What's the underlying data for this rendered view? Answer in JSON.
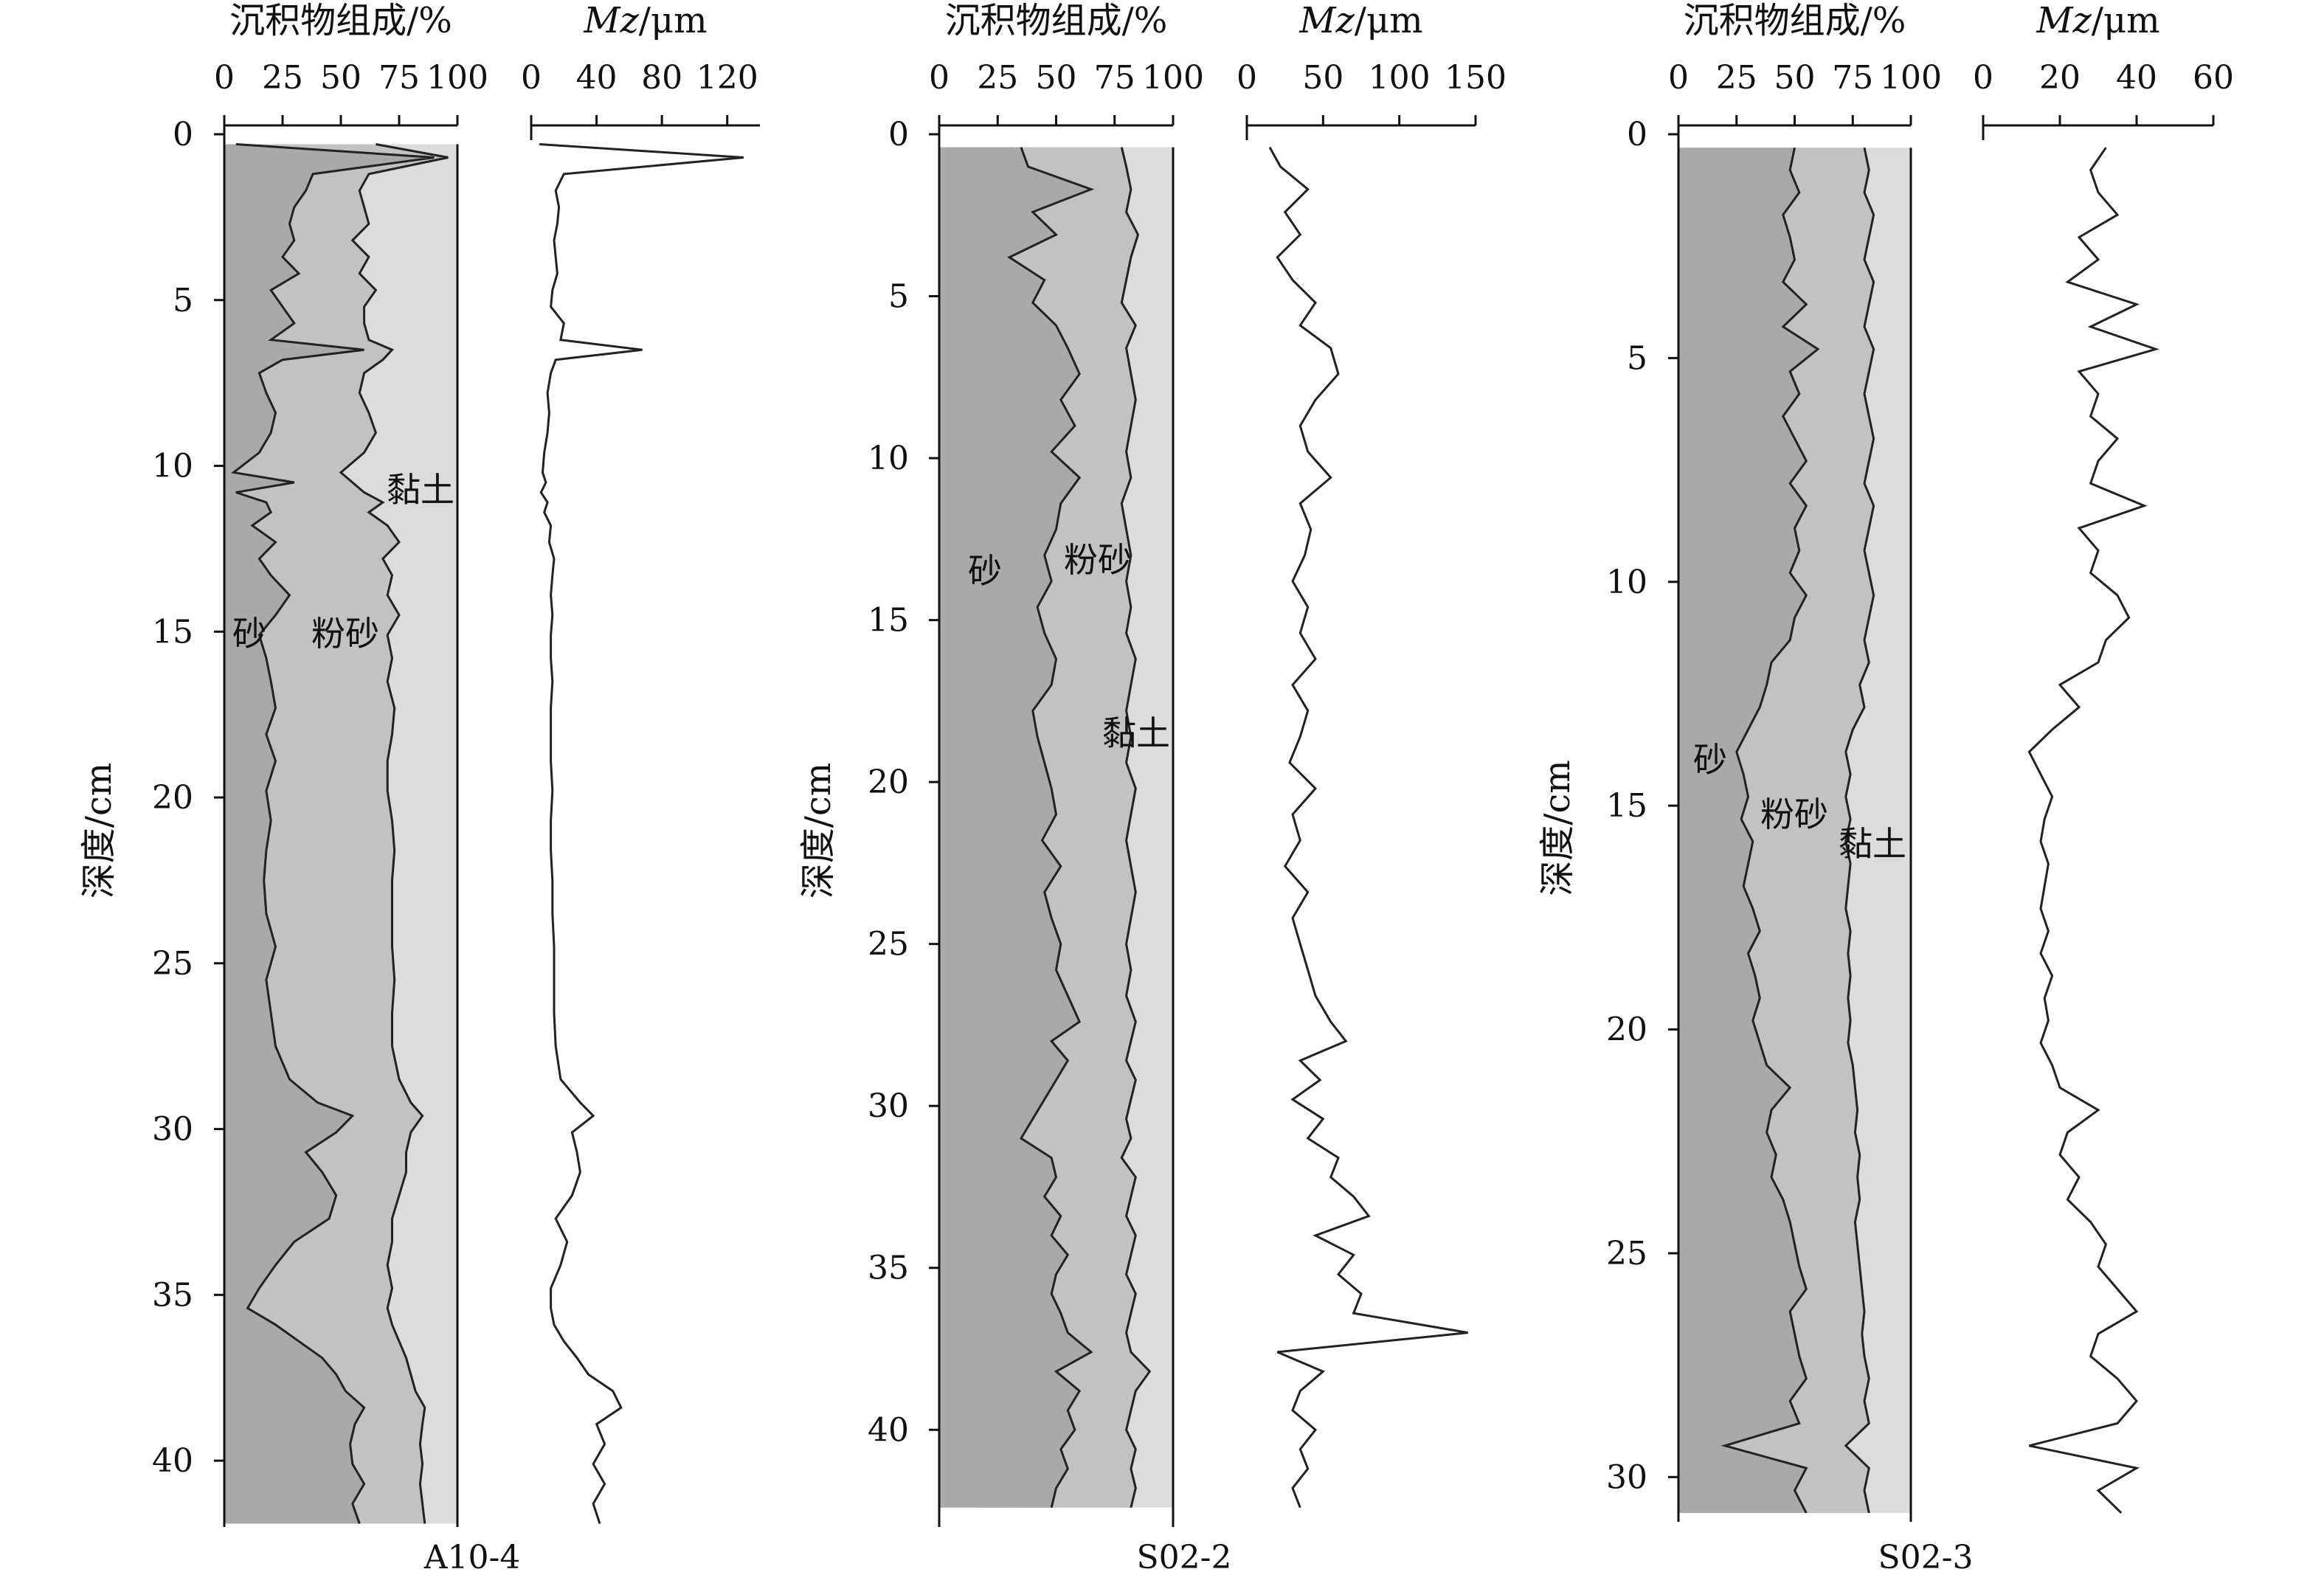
{
  "panel_labels": {
    "composition_title": "沉积物组成/%",
    "mz_title_italic": "Mz",
    "mz_title_unit": "/μm",
    "ylabel": "深度/cm",
    "sand_label": "砂",
    "silt_label": "粉砂",
    "clay_label": "黏土"
  },
  "colors": {
    "sand": "#a9a9a9",
    "silt": "#c2c2c2",
    "clay": "#dcdcdc",
    "line": "#222222"
  },
  "chart_data": [
    {
      "type": "area",
      "core": "A10-4",
      "title": "A10-4",
      "y_label": "深度/cm",
      "depth_range": [
        0,
        42
      ],
      "depth_ticks": [
        0,
        5,
        10,
        15,
        20,
        25,
        30,
        35,
        40
      ],
      "composition_range": [
        0,
        100
      ],
      "composition_ticks": [
        0,
        25,
        50,
        75,
        100
      ],
      "mz_range": [
        0,
        140
      ],
      "mz_ticks": [
        0,
        40,
        80,
        120
      ],
      "depth": [
        0.3,
        0.7,
        1.2,
        1.7,
        2.2,
        2.7,
        3.2,
        3.7,
        4.2,
        4.7,
        5.2,
        5.7,
        6.2,
        6.5,
        6.8,
        7.2,
        7.8,
        8.4,
        9,
        9.6,
        10.2,
        10.5,
        10.8,
        11.1,
        11.4,
        11.8,
        12.3,
        12.8,
        13.3,
        13.9,
        14.5,
        15.1,
        15.8,
        16.5,
        17.3,
        18.1,
        18.9,
        19.8,
        20.7,
        21.6,
        22.5,
        23.5,
        24.5,
        25.5,
        26.5,
        27.5,
        28.5,
        29.2,
        29.6,
        30.1,
        30.7,
        31.3,
        32,
        32.7,
        33.4,
        34.1,
        34.8,
        35.4,
        35.9,
        36.4,
        36.9,
        37.4,
        37.9,
        38.4,
        38.9,
        39.5,
        40.1,
        40.7,
        41.3,
        41.9
      ],
      "sand": [
        5,
        90,
        38,
        35,
        30,
        28,
        30,
        25,
        32,
        20,
        25,
        30,
        20,
        60,
        25,
        15,
        18,
        22,
        20,
        15,
        4,
        30,
        5,
        18,
        20,
        12,
        22,
        15,
        20,
        28,
        22,
        15,
        18,
        20,
        22,
        18,
        22,
        18,
        20,
        18,
        17,
        18,
        22,
        18,
        20,
        22,
        28,
        40,
        55,
        48,
        35,
        42,
        48,
        45,
        30,
        22,
        15,
        10,
        22,
        32,
        42,
        48,
        52,
        60,
        56,
        54,
        55,
        60,
        55,
        58
      ],
      "silt_cum": [
        65,
        96,
        62,
        58,
        60,
        62,
        55,
        62,
        58,
        65,
        60,
        60,
        62,
        72,
        68,
        60,
        58,
        62,
        65,
        60,
        50,
        55,
        60,
        68,
        62,
        70,
        75,
        68,
        72,
        70,
        75,
        70,
        72,
        70,
        73,
        72,
        70,
        70,
        72,
        73,
        72,
        72,
        72,
        73,
        72,
        72,
        75,
        80,
        85,
        80,
        78,
        78,
        75,
        72,
        72,
        70,
        72,
        70,
        72,
        75,
        78,
        80,
        82,
        86,
        85,
        84,
        85,
        84,
        85,
        86
      ],
      "mz": [
        5,
        130,
        20,
        15,
        17,
        16,
        14,
        15,
        16,
        13,
        12,
        20,
        18,
        68,
        15,
        12,
        10,
        11,
        10,
        8,
        7,
        9,
        6,
        10,
        8,
        12,
        11,
        14,
        13,
        12,
        13,
        12,
        12,
        13,
        12,
        12,
        12,
        13,
        12,
        12,
        13,
        13,
        14,
        14,
        14,
        15,
        18,
        30,
        38,
        25,
        28,
        30,
        25,
        15,
        22,
        18,
        12,
        12,
        14,
        20,
        28,
        35,
        50,
        55,
        40,
        45,
        38,
        45,
        38,
        42
      ]
    },
    {
      "type": "area",
      "core": "S02-2",
      "title": "S02-2",
      "y_label": "深度/cm",
      "depth_range": [
        0,
        43
      ],
      "depth_ticks": [
        0,
        5,
        10,
        15,
        20,
        25,
        30,
        35,
        40
      ],
      "composition_range": [
        0,
        100
      ],
      "composition_ticks": [
        0,
        25,
        50,
        75,
        100
      ],
      "mz_range": [
        0,
        150
      ],
      "mz_ticks": [
        0,
        50,
        100,
        150
      ],
      "depth": [
        0.4,
        1,
        1.7,
        2.4,
        3.1,
        3.8,
        4.5,
        5.2,
        5.9,
        6.6,
        7.4,
        8.2,
        9,
        9.8,
        10.6,
        11.4,
        12.2,
        13,
        13.8,
        14.6,
        15.4,
        16.2,
        17,
        17.8,
        18.6,
        19.4,
        20.2,
        21,
        21.8,
        22.6,
        23.4,
        24.2,
        25,
        25.8,
        26.6,
        27.4,
        28,
        28.6,
        29.2,
        29.8,
        30.4,
        31,
        31.6,
        32.2,
        32.8,
        33.4,
        34,
        34.6,
        35.2,
        35.8,
        36.4,
        37,
        37.6,
        38.2,
        38.8,
        39.4,
        40,
        40.6,
        41.2,
        41.8,
        42.4
      ],
      "sand": [
        35,
        38,
        65,
        40,
        50,
        30,
        45,
        40,
        50,
        55,
        60,
        52,
        58,
        48,
        60,
        52,
        50,
        45,
        48,
        42,
        45,
        50,
        48,
        40,
        42,
        45,
        48,
        50,
        44,
        52,
        45,
        48,
        52,
        50,
        55,
        60,
        48,
        55,
        50,
        45,
        40,
        35,
        48,
        50,
        45,
        52,
        48,
        55,
        50,
        48,
        52,
        55,
        65,
        50,
        60,
        55,
        58,
        52,
        55,
        50,
        48
      ],
      "silt_cum": [
        78,
        80,
        82,
        80,
        85,
        82,
        80,
        78,
        84,
        80,
        82,
        84,
        82,
        80,
        82,
        78,
        80,
        82,
        80,
        82,
        80,
        84,
        82,
        80,
        82,
        80,
        84,
        82,
        80,
        82,
        84,
        82,
        80,
        82,
        80,
        84,
        82,
        80,
        84,
        82,
        80,
        82,
        78,
        84,
        82,
        80,
        84,
        82,
        80,
        84,
        82,
        80,
        82,
        90,
        84,
        82,
        80,
        84,
        82,
        84,
        82
      ],
      "mz": [
        15,
        22,
        40,
        25,
        35,
        20,
        30,
        45,
        35,
        55,
        60,
        45,
        35,
        40,
        55,
        35,
        42,
        38,
        30,
        40,
        35,
        45,
        30,
        40,
        35,
        28,
        45,
        30,
        35,
        25,
        40,
        30,
        35,
        40,
        45,
        55,
        65,
        35,
        48,
        30,
        50,
        40,
        60,
        55,
        70,
        80,
        45,
        70,
        60,
        75,
        70,
        145,
        20,
        50,
        35,
        30,
        45,
        35,
        40,
        30,
        35
      ]
    },
    {
      "type": "area",
      "core": "S02-3",
      "title": "S02-3",
      "y_label": "深度/cm",
      "depth_range": [
        0,
        31
      ],
      "depth_ticks": [
        0,
        5,
        10,
        15,
        20,
        25,
        30
      ],
      "composition_range": [
        0,
        100
      ],
      "composition_ticks": [
        0,
        25,
        50,
        75,
        100
      ],
      "mz_range": [
        0,
        60
      ],
      "mz_ticks": [
        0,
        20,
        40,
        60
      ],
      "depth": [
        0.3,
        0.8,
        1.3,
        1.8,
        2.3,
        2.8,
        3.3,
        3.8,
        4.3,
        4.8,
        5.3,
        5.8,
        6.3,
        6.8,
        7.3,
        7.8,
        8.3,
        8.8,
        9.3,
        9.8,
        10.3,
        10.8,
        11.3,
        11.8,
        12.3,
        12.8,
        13.3,
        13.8,
        14.3,
        14.8,
        15.3,
        15.8,
        16.3,
        16.8,
        17.3,
        17.8,
        18.3,
        18.8,
        19.3,
        19.8,
        20.3,
        20.8,
        21.3,
        21.8,
        22.3,
        22.8,
        23.3,
        23.8,
        24.3,
        24.8,
        25.3,
        25.8,
        26.3,
        26.8,
        27.3,
        27.8,
        28.3,
        28.8,
        29.3,
        29.8,
        30.3,
        30.8
      ],
      "sand": [
        50,
        48,
        52,
        45,
        48,
        50,
        45,
        55,
        45,
        60,
        48,
        52,
        45,
        50,
        55,
        48,
        55,
        50,
        52,
        48,
        55,
        50,
        48,
        40,
        38,
        35,
        30,
        25,
        28,
        30,
        27,
        32,
        30,
        28,
        32,
        35,
        30,
        33,
        35,
        32,
        35,
        38,
        48,
        40,
        38,
        42,
        40,
        45,
        48,
        50,
        52,
        55,
        48,
        50,
        52,
        55,
        48,
        52,
        20,
        55,
        50,
        55
      ],
      "silt_cum": [
        80,
        82,
        80,
        84,
        82,
        80,
        84,
        82,
        80,
        84,
        82,
        80,
        82,
        84,
        82,
        80,
        84,
        82,
        80,
        82,
        84,
        82,
        80,
        82,
        78,
        80,
        75,
        72,
        74,
        72,
        74,
        72,
        74,
        73,
        72,
        74,
        73,
        74,
        73,
        74,
        73,
        75,
        76,
        77,
        76,
        78,
        77,
        78,
        76,
        77,
        78,
        79,
        80,
        79,
        80,
        82,
        80,
        82,
        72,
        82,
        80,
        82
      ],
      "mz": [
        32,
        28,
        30,
        35,
        25,
        30,
        22,
        40,
        28,
        45,
        25,
        30,
        28,
        35,
        30,
        28,
        42,
        25,
        30,
        28,
        35,
        38,
        32,
        30,
        20,
        25,
        18,
        12,
        15,
        18,
        16,
        15,
        17,
        16,
        15,
        17,
        15,
        18,
        16,
        17,
        15,
        18,
        20,
        30,
        22,
        20,
        25,
        22,
        28,
        32,
        30,
        35,
        40,
        30,
        28,
        35,
        40,
        35,
        12,
        40,
        30,
        36
      ]
    }
  ]
}
